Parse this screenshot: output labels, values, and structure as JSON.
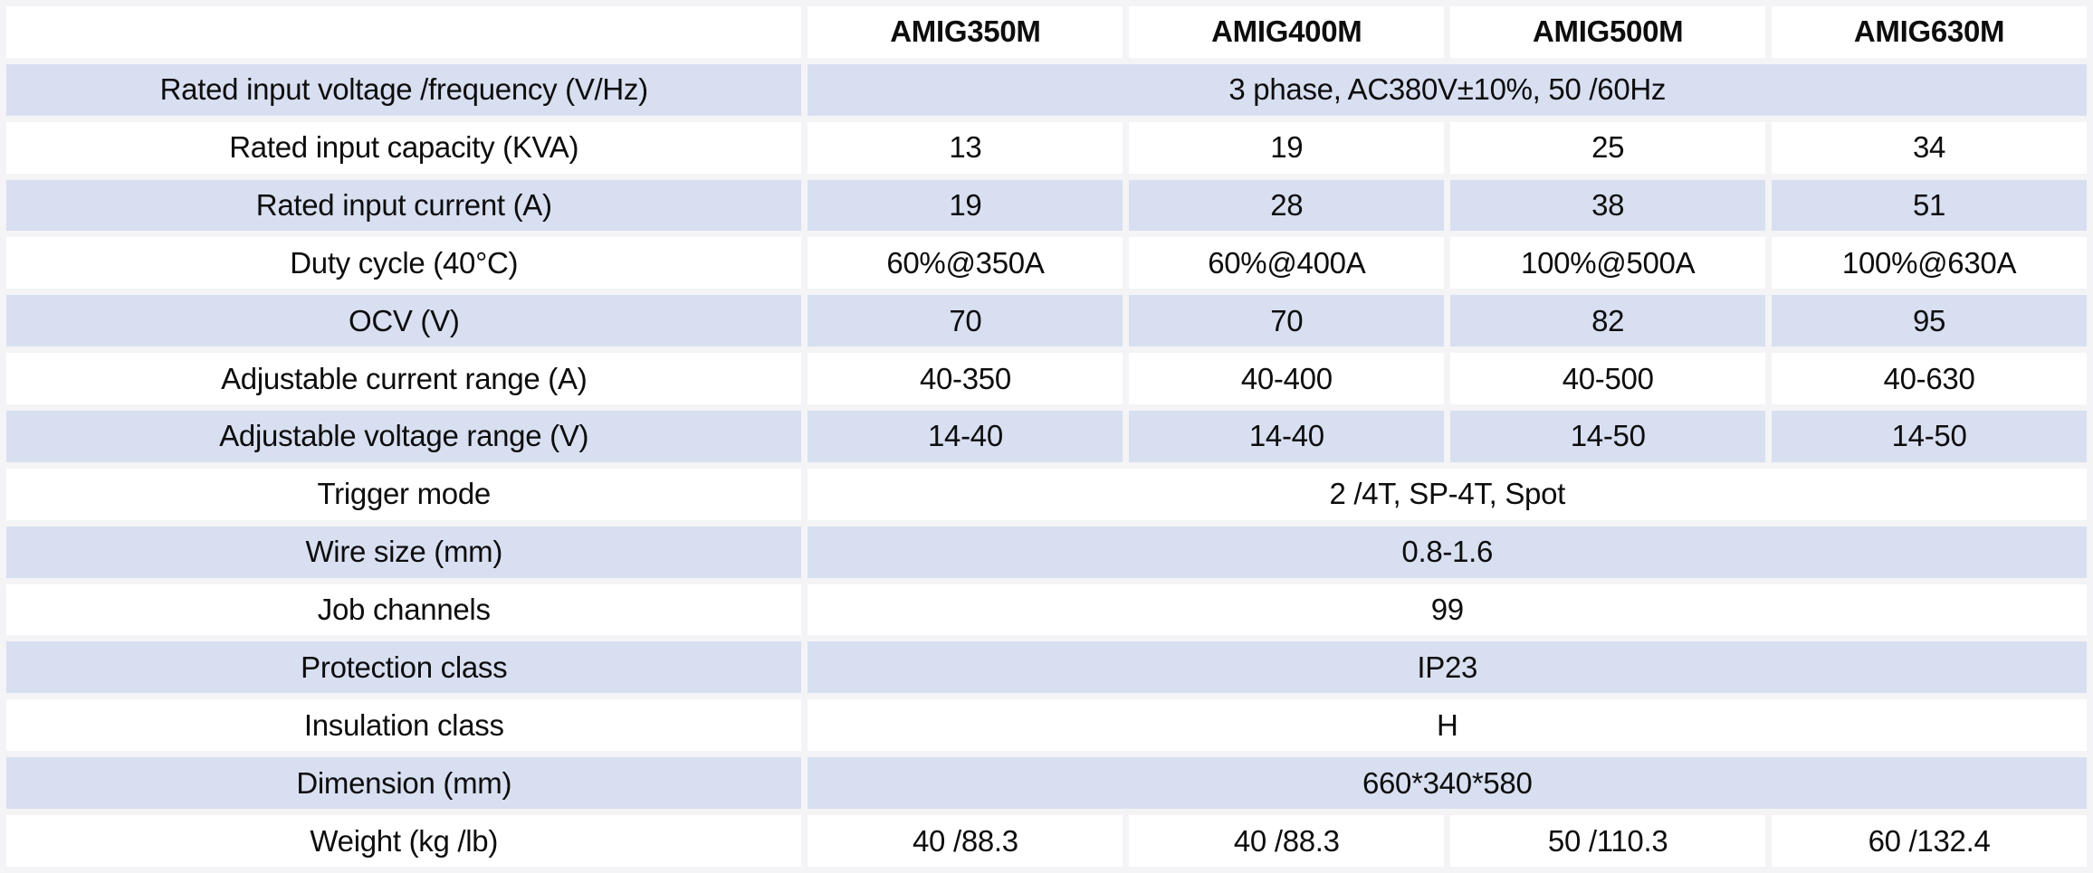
{
  "colors": {
    "band": "#D8DFF1",
    "gap": "#F4F4F6",
    "cell": "#FFFFFF",
    "text": "#0D0D0D"
  },
  "table": {
    "corner": "",
    "columns": [
      "AMIG350M",
      "AMIG400M",
      "AMIG500M",
      "AMIG630M"
    ],
    "rows": [
      {
        "label": "Rated input voltage /frequency (V/Hz)",
        "merged": "3 phase, AC380V±10%, 50 /60Hz"
      },
      {
        "label": "Rated input capacity (KVA)",
        "values": [
          "13",
          "19",
          "25",
          "34"
        ]
      },
      {
        "label": "Rated input current (A)",
        "values": [
          "19",
          "28",
          "38",
          "51"
        ]
      },
      {
        "label": "Duty cycle (40°C)",
        "values": [
          "60%@350A",
          "60%@400A",
          "100%@500A",
          "100%@630A"
        ]
      },
      {
        "label": "OCV (V)",
        "values": [
          "70",
          "70",
          "82",
          "95"
        ]
      },
      {
        "label": "Adjustable current range (A)",
        "values": [
          "40-350",
          "40-400",
          "40-500",
          "40-630"
        ]
      },
      {
        "label": "Adjustable voltage range (V)",
        "values": [
          "14-40",
          "14-40",
          "14-50",
          "14-50"
        ]
      },
      {
        "label": "Trigger mode",
        "merged": "2 /4T, SP-4T, Spot"
      },
      {
        "label": "Wire size (mm)",
        "merged": "0.8-1.6"
      },
      {
        "label": "Job channels",
        "merged": "99"
      },
      {
        "label": "Protection class",
        "merged": "IP23"
      },
      {
        "label": "Insulation class",
        "merged": "H"
      },
      {
        "label": "Dimension (mm)",
        "merged": "660*340*580"
      },
      {
        "label": "Weight (kg /lb)",
        "values": [
          "40 /88.3",
          "40 /88.3",
          "50 /110.3",
          "60 /132.4"
        ]
      }
    ]
  }
}
